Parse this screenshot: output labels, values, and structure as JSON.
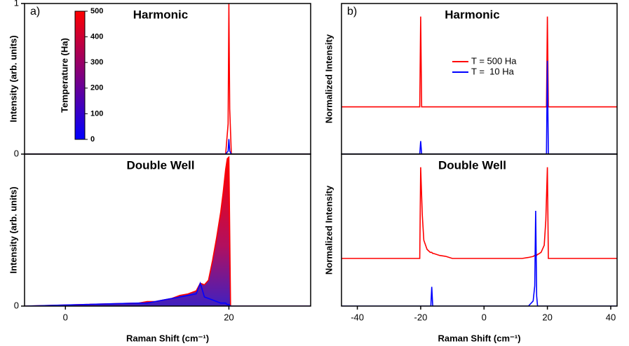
{
  "chart_data": [
    {
      "type": "line",
      "panel_label": "a)",
      "title": "Harmonic",
      "y_label": "Intensity (arb. units)",
      "x": [
        -5,
        19.6,
        19.9,
        20,
        20.1,
        20.3,
        30
      ],
      "series": [
        {
          "color": "#ff0000",
          "fill": false,
          "values": [
            0,
            0,
            0.2,
            1,
            0.3,
            0,
            0
          ]
        },
        {
          "color": "#0000ff",
          "fill": false,
          "values": [
            0,
            0,
            0.02,
            0.1,
            0.02,
            0,
            0
          ]
        }
      ],
      "xlim": [
        -5,
        30
      ],
      "ylim": [
        0,
        1
      ],
      "yticks": [
        0,
        1
      ],
      "colorbar": {
        "label": "Temperature (Ha)",
        "lim": [
          0,
          500
        ],
        "ticks": [
          0,
          100,
          200,
          300,
          400,
          500
        ],
        "colors": [
          "#0000ff",
          "#ff0000"
        ]
      }
    },
    {
      "type": "line",
      "title": "Double Well",
      "y_label": "Intensity (arb. units)",
      "x_label": "Raman Shift (cm⁻¹)",
      "x": [
        -5,
        9,
        10,
        11,
        12,
        13,
        14,
        15,
        16,
        16.5,
        17,
        17.5,
        18,
        18.5,
        19,
        19.3,
        19.6,
        19.8,
        20,
        20.2,
        30
      ],
      "series": [
        {
          "color": "#ff0000",
          "fill": true,
          "values": [
            0,
            0.02,
            0.03,
            0.03,
            0.04,
            0.05,
            0.07,
            0.08,
            0.1,
            0.15,
            0.14,
            0.17,
            0.3,
            0.45,
            0.62,
            0.75,
            0.9,
            0.97,
            0.98,
            0,
            0
          ]
        },
        {
          "color": "#0000ff",
          "fill": false,
          "values": [
            0,
            0.02,
            0.02,
            0.03,
            0.04,
            0.05,
            0.06,
            0.07,
            0.08,
            0.15,
            0.06,
            0.05,
            0.04,
            0.03,
            0.02,
            0.02,
            0.02,
            0.01,
            0.01,
            0,
            0
          ]
        }
      ],
      "xlim": [
        -5,
        30
      ],
      "xticks": [
        0,
        20
      ],
      "ylim": [
        0,
        1
      ],
      "yticks": [
        0
      ]
    },
    {
      "type": "line",
      "panel_label": "b)",
      "title": "Harmonic",
      "y_label": "Normalized Intensity",
      "x": [
        -45,
        -20.3,
        -20,
        -19.7,
        19.7,
        20,
        20.3,
        42
      ],
      "series": [
        {
          "name": "T = 500 Ha",
          "color": "#ff0000",
          "fill": false,
          "values": [
            0.47,
            0.47,
            1.37,
            0.47,
            0.47,
            1.37,
            0.47,
            0.47
          ]
        },
        {
          "name": "T =  10 Ha",
          "color": "#0000ff",
          "fill": false,
          "values": [
            0,
            0,
            0.13,
            0,
            0,
            0.93,
            0,
            0
          ]
        }
      ],
      "xlim": [
        -45,
        42
      ],
      "ylim": [
        0,
        1.5
      ]
    },
    {
      "type": "line",
      "title": "Double Well",
      "y_label": "Normalized Intensity",
      "x_label": "Raman Shift (cm⁻¹)",
      "x": [
        -45,
        -20.3,
        -20,
        -19.5,
        -19,
        -18,
        -17,
        -16.8,
        -16.5,
        -16.2,
        -16,
        -14,
        -12,
        -10,
        12,
        14,
        15.5,
        16,
        16.3,
        16.6,
        16.9,
        17,
        18,
        19,
        19.5,
        20,
        20.3,
        42
      ],
      "series": [
        {
          "color": "#ff0000",
          "fill": false,
          "values": [
            0.47,
            0.47,
            1.37,
            0.9,
            0.65,
            0.56,
            0.53,
            0.53,
            0.53,
            0.52,
            0.52,
            0.5,
            0.49,
            0.47,
            0.47,
            0.48,
            0.49,
            0.5,
            0.5,
            0.5,
            0.51,
            0.51,
            0.53,
            0.6,
            0.85,
            1.37,
            0.47,
            0.47
          ]
        },
        {
          "color": "#0000ff",
          "fill": false,
          "values": [
            0,
            0,
            0,
            0,
            0,
            0,
            0,
            0,
            0.19,
            0,
            0,
            0,
            0,
            0,
            0,
            0,
            0.05,
            0.2,
            0.94,
            0.1,
            0,
            0,
            0,
            0,
            0,
            0,
            0,
            0
          ]
        }
      ],
      "xlim": [
        -45,
        42
      ],
      "xticks": [
        -40,
        -20,
        0,
        20,
        40
      ],
      "ylim": [
        0,
        1.5
      ]
    }
  ]
}
